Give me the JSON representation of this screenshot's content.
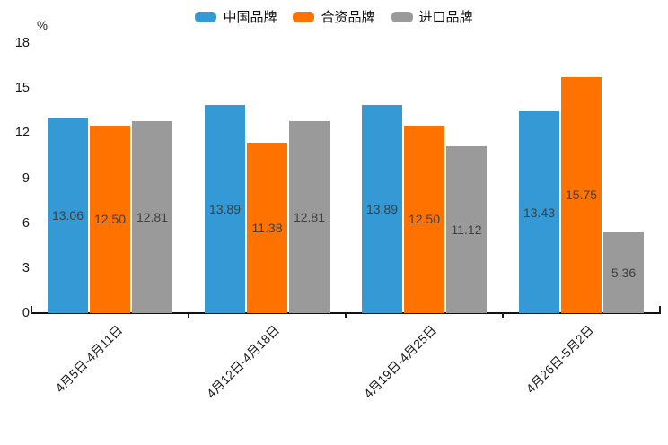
{
  "chart_data": {
    "type": "bar",
    "title": "",
    "unit_label": "%",
    "legend_position": "top",
    "grid": false,
    "categories": [
      "4月5日-4月11日",
      "4月12日-4月18日",
      "4月19日-4月25日",
      "4月26日-5月2日"
    ],
    "series": [
      {
        "name": "中国品牌",
        "color": "#3499d4",
        "values": [
          13.06,
          13.89,
          13.89,
          13.43
        ],
        "labels": [
          "13.06",
          "13.89",
          "13.89",
          "13.43"
        ]
      },
      {
        "name": "合资品牌",
        "color": "#ff7200",
        "values": [
          12.5,
          11.38,
          12.5,
          15.75
        ],
        "labels": [
          "12.50",
          "11.38",
          "12.50",
          "15.75"
        ]
      },
      {
        "name": "进口品牌",
        "color": "#9a9a9a",
        "values": [
          12.81,
          12.81,
          11.12,
          5.36
        ],
        "labels": [
          "12.81",
          "12.81",
          "11.12",
          "5.36"
        ]
      }
    ],
    "y_axis": {
      "label": "%",
      "min": 0,
      "max": 18,
      "ticks": [
        0,
        3,
        6,
        9,
        12,
        15,
        18
      ]
    },
    "colors": {
      "bar_label": "#404040",
      "axis": "#111111",
      "tick_label": "#1a1a1a"
    }
  }
}
